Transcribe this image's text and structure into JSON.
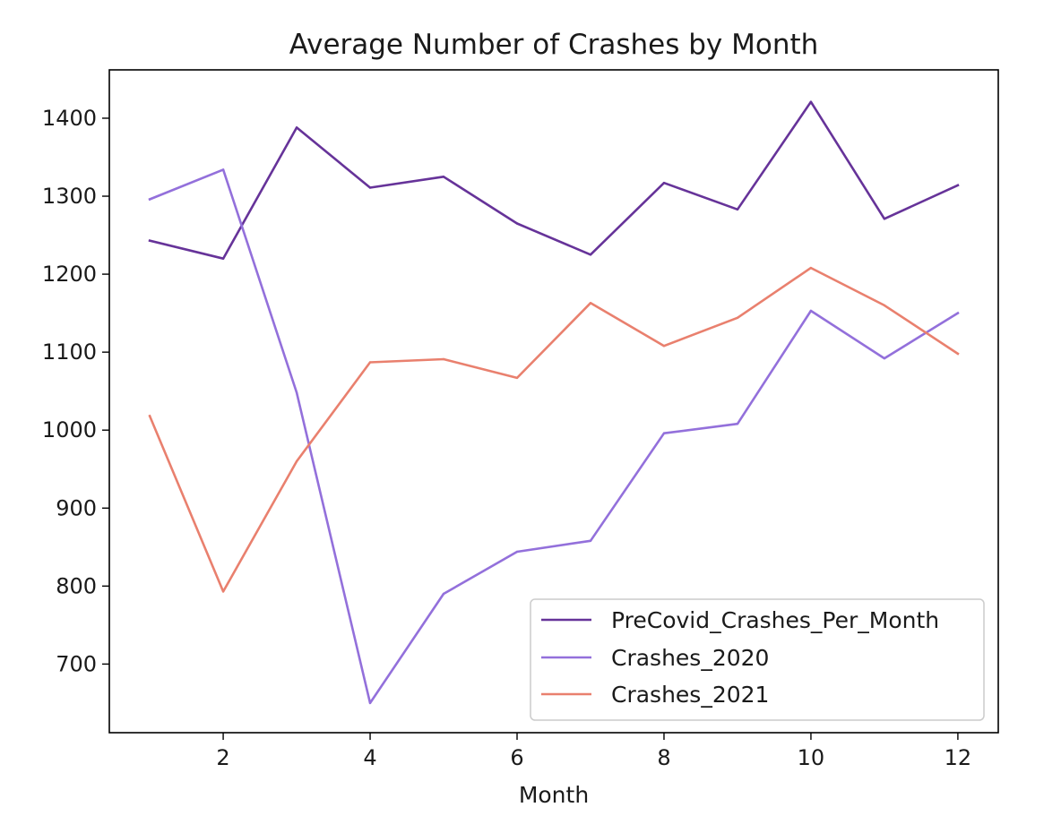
{
  "chart_data": {
    "type": "line",
    "title": "Average Number of Crashes by Month",
    "xlabel": "Month",
    "ylabel": "",
    "x": [
      1,
      2,
      3,
      4,
      5,
      6,
      7,
      8,
      9,
      10,
      11,
      12
    ],
    "xlim": [
      0.45,
      12.55
    ],
    "ylim": [
      612,
      1462
    ],
    "xticks": [
      2,
      4,
      6,
      8,
      10,
      12
    ],
    "yticks": [
      700,
      800,
      900,
      1000,
      1100,
      1200,
      1300,
      1400
    ],
    "grid": false,
    "legend_position": "lower-right",
    "series": [
      {
        "name": "PreCovid_Crashes_Per_Month",
        "color": "#663399",
        "values": [
          1243,
          1220,
          1388,
          1311,
          1325,
          1265,
          1225,
          1317,
          1283,
          1421,
          1271,
          1314
        ]
      },
      {
        "name": "Crashes_2020",
        "color": "#9370DB",
        "values": [
          1296,
          1334,
          1048,
          650,
          790,
          844,
          858,
          996,
          1008,
          1153,
          1092,
          1150
        ]
      },
      {
        "name": "Crashes_2021",
        "color": "#E9806E",
        "values": [
          1018,
          793,
          960,
          1087,
          1091,
          1067,
          1163,
          1108,
          1144,
          1208,
          1160,
          1098
        ]
      }
    ]
  }
}
